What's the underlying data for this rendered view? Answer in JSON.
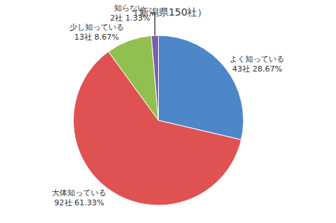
{
  "chart_data": {
    "type": "pie",
    "title": "（新潟県150社）",
    "categories": [
      "よく知っている",
      "大体知っている",
      "少し知っている",
      "知らない"
    ],
    "values": [
      43,
      92,
      13,
      2
    ],
    "value_labels": [
      "43社 28.67%",
      "92社 61.33%",
      "13社 8.67%",
      "2社 1.33%"
    ],
    "colors": [
      "#4E87C9",
      "#E05252",
      "#92C050",
      "#7B5EA7"
    ],
    "data_labels": true
  }
}
